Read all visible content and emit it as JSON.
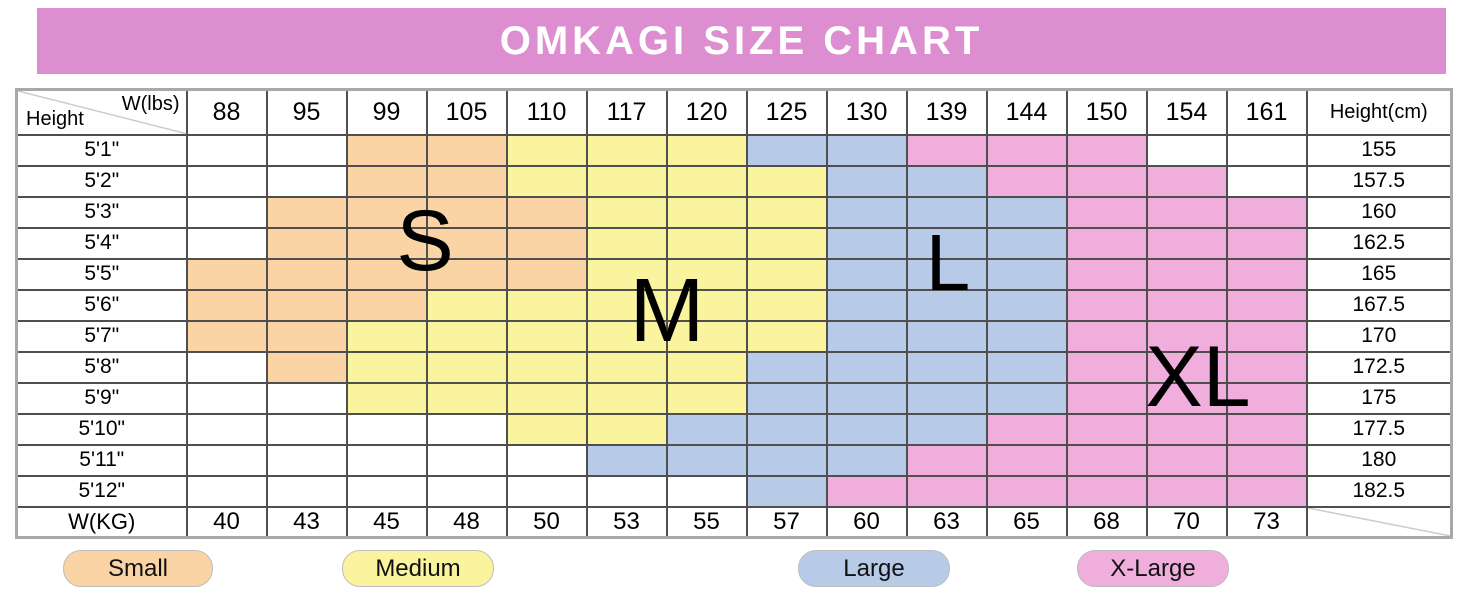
{
  "title": "OMKAGI SIZE CHART",
  "colors": {
    "banner": "#dd8ed0",
    "small": "#fad4a4",
    "medium": "#faf49e",
    "large": "#b7cbe9",
    "xlarge": "#f0aedd"
  },
  "chart_data": {
    "type": "heatmap",
    "title": "OMKAGI SIZE CHART",
    "corner_top": {
      "top_right": "W(lbs)",
      "bottom_left": "Height"
    },
    "weights_lbs": [
      "88",
      "95",
      "99",
      "105",
      "110",
      "117",
      "120",
      "125",
      "130",
      "139",
      "144",
      "150",
      "154",
      "161"
    ],
    "height_cm_header": "Height(cm)",
    "cell_legend_map": {
      "w": "none",
      "s": "Small",
      "m": "Medium",
      "l": "Large",
      "x": "X-Large"
    },
    "rows": [
      {
        "height": "5'1\"",
        "cm": "155",
        "cells": [
          "w",
          "w",
          "s",
          "s",
          "m",
          "m",
          "m",
          "l",
          "l",
          "x",
          "x",
          "x",
          "w",
          "w"
        ]
      },
      {
        "height": "5'2\"",
        "cm": "157.5",
        "cells": [
          "w",
          "w",
          "s",
          "s",
          "m",
          "m",
          "m",
          "m",
          "l",
          "l",
          "x",
          "x",
          "x",
          "w"
        ]
      },
      {
        "height": "5'3\"",
        "cm": "160",
        "cells": [
          "w",
          "s",
          "s",
          "s",
          "s",
          "m",
          "m",
          "m",
          "l",
          "l",
          "l",
          "x",
          "x",
          "x"
        ]
      },
      {
        "height": "5'4\"",
        "cm": "162.5",
        "cells": [
          "w",
          "s",
          "s",
          "s",
          "s",
          "m",
          "m",
          "m",
          "l",
          "l",
          "l",
          "x",
          "x",
          "x"
        ]
      },
      {
        "height": "5'5\"",
        "cm": "165",
        "cells": [
          "s",
          "s",
          "s",
          "s",
          "s",
          "m",
          "m",
          "m",
          "l",
          "l",
          "l",
          "x",
          "x",
          "x"
        ]
      },
      {
        "height": "5'6\"",
        "cm": "167.5",
        "cells": [
          "s",
          "s",
          "s",
          "m",
          "m",
          "m",
          "m",
          "m",
          "l",
          "l",
          "l",
          "x",
          "x",
          "x"
        ]
      },
      {
        "height": "5'7\"",
        "cm": "170",
        "cells": [
          "s",
          "s",
          "m",
          "m",
          "m",
          "m",
          "m",
          "m",
          "l",
          "l",
          "l",
          "x",
          "x",
          "x"
        ]
      },
      {
        "height": "5'8\"",
        "cm": "172.5",
        "cells": [
          "w",
          "s",
          "m",
          "m",
          "m",
          "m",
          "m",
          "l",
          "l",
          "l",
          "l",
          "x",
          "x",
          "x"
        ]
      },
      {
        "height": "5'9\"",
        "cm": "175",
        "cells": [
          "w",
          "w",
          "m",
          "m",
          "m",
          "m",
          "m",
          "l",
          "l",
          "l",
          "l",
          "x",
          "x",
          "x"
        ]
      },
      {
        "height": "5'10\"",
        "cm": "177.5",
        "cells": [
          "w",
          "w",
          "w",
          "w",
          "m",
          "m",
          "l",
          "l",
          "l",
          "l",
          "x",
          "x",
          "x",
          "x"
        ]
      },
      {
        "height": "5'11\"",
        "cm": "180",
        "cells": [
          "w",
          "w",
          "w",
          "w",
          "w",
          "l",
          "l",
          "l",
          "l",
          "x",
          "x",
          "x",
          "x",
          "x"
        ]
      },
      {
        "height": "5'12\"",
        "cm": "182.5",
        "cells": [
          "w",
          "w",
          "w",
          "w",
          "w",
          "w",
          "w",
          "l",
          "x",
          "x",
          "x",
          "x",
          "x",
          "x"
        ]
      }
    ],
    "footer_label": "W(KG)",
    "weights_kg": [
      "40",
      "43",
      "45",
      "48",
      "50",
      "53",
      "55",
      "57",
      "60",
      "63",
      "65",
      "68",
      "70",
      "73"
    ],
    "size_region_labels": {
      "s": "S",
      "m": "M",
      "l": "L",
      "x": "XL"
    }
  },
  "legend": [
    {
      "label": "Small",
      "key": "small"
    },
    {
      "label": "Medium",
      "key": "medium"
    },
    {
      "label": "Large",
      "key": "large"
    },
    {
      "label": "X-Large",
      "key": "xlarge"
    }
  ]
}
